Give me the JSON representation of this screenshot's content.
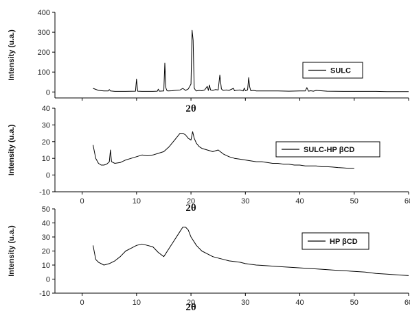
{
  "chart_data": [
    {
      "type": "line",
      "ylabel": "Intensity (u.a.)",
      "xlabel": "2θ",
      "xlim": [
        -5,
        60
      ],
      "ylim": [
        -30,
        400
      ],
      "xticks": [
        0,
        10,
        20,
        30,
        40,
        50,
        60
      ],
      "yticks": [
        0,
        100,
        200,
        300,
        400
      ],
      "show_xtick_labels": false,
      "legend": "top-right",
      "series": [
        {
          "name": "SULC",
          "x": [
            2,
            3,
            4,
            4.8,
            5,
            5.2,
            6,
            8,
            9.8,
            10,
            10.2,
            11,
            13,
            13.8,
            14,
            14.2,
            15,
            15.2,
            15.4,
            15.6,
            15.8,
            16.5,
            17,
            18,
            18.5,
            19,
            19.5,
            20,
            20.2,
            20.4,
            20.6,
            20.8,
            21,
            21.5,
            22,
            22.5,
            23,
            23.2,
            23.4,
            23.6,
            24,
            24.5,
            25,
            25.3,
            25.6,
            25.9,
            26.5,
            27,
            27.8,
            28,
            28.2,
            29,
            29.6,
            29.8,
            30,
            30.4,
            30.6,
            30.8,
            31,
            31.5,
            32,
            34,
            36,
            38,
            40,
            41,
            41.3,
            41.6,
            42,
            42.5,
            43,
            45,
            48,
            50,
            52,
            54,
            56,
            58,
            60
          ],
          "y": [
            18,
            8,
            5,
            5,
            12,
            5,
            3,
            3,
            4,
            65,
            4,
            3,
            3,
            4,
            14,
            4,
            5,
            145,
            20,
            6,
            5,
            6,
            8,
            10,
            18,
            8,
            15,
            40,
            310,
            260,
            20,
            10,
            5,
            8,
            6,
            10,
            28,
            8,
            35,
            10,
            8,
            12,
            10,
            85,
            15,
            8,
            10,
            8,
            18,
            6,
            8,
            10,
            5,
            20,
            6,
            10,
            72,
            25,
            6,
            8,
            5,
            5,
            5,
            4,
            5,
            5,
            22,
            4,
            6,
            4,
            8,
            4,
            3,
            3,
            3,
            3,
            2,
            2,
            2
          ],
          "color": "#000000"
        }
      ]
    },
    {
      "type": "line",
      "ylabel": "Intensity (u.a.)",
      "xlabel": "2θ",
      "xlim": [
        -5,
        60
      ],
      "ylim": [
        -10,
        40
      ],
      "xticks": [
        0,
        10,
        20,
        30,
        40,
        50,
        60
      ],
      "yticks": [
        -10,
        0,
        10,
        20,
        30,
        40
      ],
      "legend": "top-right",
      "series": [
        {
          "name": "SULC-HP βCD",
          "x": [
            2,
            2.5,
            3,
            3.5,
            4,
            4.5,
            5,
            5.2,
            5.4,
            6,
            7,
            8,
            9,
            10,
            11,
            12,
            13,
            14,
            15,
            16,
            17,
            18,
            18.5,
            19,
            19.5,
            20,
            20.3,
            20.6,
            21,
            21.5,
            22,
            23,
            24,
            25,
            26,
            27,
            28,
            29,
            30,
            31,
            32,
            33,
            34,
            35,
            36,
            37,
            38,
            39,
            40,
            41,
            42,
            43,
            44,
            45,
            46,
            47,
            48,
            49,
            50
          ],
          "y": [
            18,
            10,
            7,
            6,
            6,
            6.5,
            8,
            15,
            8,
            7,
            7.5,
            9,
            10,
            11,
            12,
            11.5,
            12,
            13,
            14,
            17,
            21,
            25,
            25,
            24,
            22,
            21,
            26,
            22,
            19,
            17,
            16,
            15,
            14,
            15,
            12.5,
            11,
            10,
            9.5,
            9,
            8.5,
            8,
            8,
            7.5,
            7,
            7,
            6.5,
            6.5,
            6,
            6,
            5.5,
            5.5,
            5.5,
            5,
            5,
            4.8,
            4.5,
            4.3,
            4,
            4
          ],
          "color": "#000000"
        }
      ]
    },
    {
      "type": "line",
      "ylabel": "Intensity (u.a.)",
      "xlabel": "2θ",
      "xlim": [
        -5,
        60
      ],
      "ylim": [
        -10,
        50
      ],
      "xticks": [
        0,
        10,
        20,
        30,
        40,
        50,
        60
      ],
      "yticks": [
        -10,
        0,
        10,
        20,
        30,
        40,
        50
      ],
      "legend": "top-right",
      "series": [
        {
          "name": "HP βCD",
          "x": [
            2,
            2.5,
            3,
            4,
            5,
            6,
            7,
            8,
            9,
            10,
            11,
            12,
            13,
            14,
            15,
            16,
            17,
            18,
            18.5,
            19,
            19.5,
            20,
            21,
            22,
            23,
            24,
            25,
            26,
            27,
            28,
            29,
            30,
            32,
            34,
            36,
            38,
            40,
            42,
            44,
            46,
            48,
            50,
            52,
            54,
            56,
            58,
            60
          ],
          "y": [
            24,
            14,
            12,
            10,
            11,
            13,
            16,
            20,
            22,
            24,
            25,
            24,
            23,
            19,
            16,
            22,
            28,
            34,
            37,
            37,
            35,
            30,
            24,
            20,
            18,
            16,
            15,
            14,
            13,
            12.5,
            12,
            11,
            10,
            9.5,
            9,
            8.5,
            8,
            7.5,
            7,
            6.5,
            6,
            5.5,
            5,
            4,
            3.5,
            3,
            2.5
          ],
          "color": "#000000"
        }
      ]
    }
  ]
}
